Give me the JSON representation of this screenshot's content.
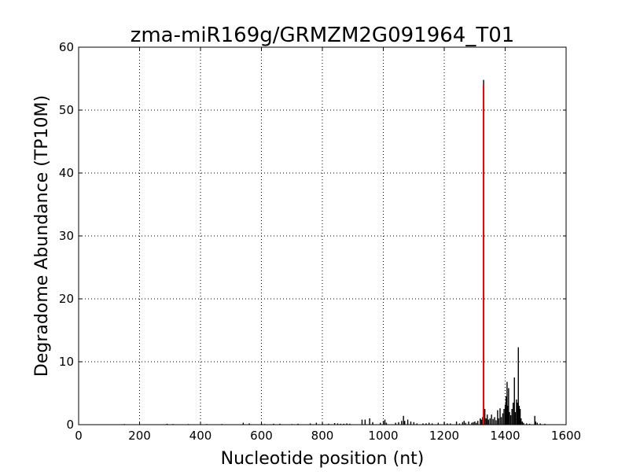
{
  "chart_data": {
    "type": "bar",
    "title": "zma-miR169g/GRMZM2G091964_T01",
    "xlabel": "Nucleotide position (nt)",
    "ylabel": "Degradome Abundance (TP10M)",
    "xlim": [
      0,
      1600
    ],
    "ylim": [
      0,
      60
    ],
    "xticks": [
      "0",
      "200",
      "400",
      "600",
      "800",
      "1000",
      "1200",
      "1400",
      "1600"
    ],
    "yticks": [
      "0",
      "10",
      "20",
      "30",
      "40",
      "50",
      "60"
    ],
    "grid": true,
    "bar_color": "#000000",
    "points": [
      [
        150,
        0.1
      ],
      [
        290,
        0.15
      ],
      [
        310,
        0.1
      ],
      [
        360,
        0.1
      ],
      [
        420,
        0.1
      ],
      [
        470,
        0.1
      ],
      [
        540,
        0.3
      ],
      [
        560,
        0.2
      ],
      [
        600,
        0.15
      ],
      [
        610,
        0.1
      ],
      [
        640,
        0.15
      ],
      [
        660,
        0.15
      ],
      [
        700,
        0.1
      ],
      [
        720,
        0.15
      ],
      [
        760,
        0.2
      ],
      [
        780,
        0.3
      ],
      [
        800,
        0.2
      ],
      [
        820,
        0.15
      ],
      [
        840,
        0.25
      ],
      [
        850,
        0.2
      ],
      [
        860,
        0.15
      ],
      [
        870,
        0.15
      ],
      [
        880,
        0.2
      ],
      [
        890,
        0.15
      ],
      [
        930,
        0.8
      ],
      [
        940,
        0.8
      ],
      [
        955,
        1.0
      ],
      [
        965,
        0.4
      ],
      [
        990,
        0.3
      ],
      [
        1000,
        0.6
      ],
      [
        1005,
        0.8
      ],
      [
        1010,
        0.3
      ],
      [
        1040,
        0.3
      ],
      [
        1050,
        0.4
      ],
      [
        1060,
        0.6
      ],
      [
        1066,
        1.4
      ],
      [
        1070,
        0.6
      ],
      [
        1080,
        0.8
      ],
      [
        1090,
        0.5
      ],
      [
        1100,
        0.4
      ],
      [
        1110,
        0.2
      ],
      [
        1130,
        0.2
      ],
      [
        1140,
        0.2
      ],
      [
        1150,
        0.3
      ],
      [
        1160,
        0.2
      ],
      [
        1180,
        0.3
      ],
      [
        1200,
        0.4
      ],
      [
        1210,
        0.2
      ],
      [
        1220,
        0.2
      ],
      [
        1240,
        0.5
      ],
      [
        1250,
        0.2
      ],
      [
        1260,
        0.4
      ],
      [
        1265,
        0.6
      ],
      [
        1270,
        0.3
      ],
      [
        1280,
        0.5
      ],
      [
        1290,
        0.3
      ],
      [
        1295,
        0.4
      ],
      [
        1300,
        0.5
      ],
      [
        1305,
        0.3
      ],
      [
        1310,
        0.6
      ],
      [
        1318,
        1.0
      ],
      [
        1322,
        0.8
      ],
      [
        1326,
        1.2
      ],
      [
        1329,
        54.8
      ],
      [
        1333,
        2.5
      ],
      [
        1337,
        1.0
      ],
      [
        1341,
        1.6
      ],
      [
        1345,
        0.8
      ],
      [
        1350,
        1.0
      ],
      [
        1355,
        1.6
      ],
      [
        1360,
        0.9
      ],
      [
        1365,
        1.2
      ],
      [
        1370,
        0.7
      ],
      [
        1375,
        2.3
      ],
      [
        1378,
        1.0
      ],
      [
        1383,
        2.6
      ],
      [
        1387,
        1.2
      ],
      [
        1392,
        1.8
      ],
      [
        1396,
        2.5
      ],
      [
        1400,
        3.2
      ],
      [
        1403,
        4.5
      ],
      [
        1406,
        6.8
      ],
      [
        1408,
        3.0
      ],
      [
        1411,
        5.8
      ],
      [
        1414,
        2.0
      ],
      [
        1418,
        1.5
      ],
      [
        1422,
        2.5
      ],
      [
        1426,
        3.5
      ],
      [
        1430,
        7.5
      ],
      [
        1433,
        2.0
      ],
      [
        1437,
        4.0
      ],
      [
        1440,
        3.5
      ],
      [
        1443,
        12.3
      ],
      [
        1446,
        3.0
      ],
      [
        1449,
        2.5
      ],
      [
        1452,
        1.0
      ],
      [
        1456,
        0.5
      ],
      [
        1460,
        0.3
      ],
      [
        1470,
        0.2
      ],
      [
        1480,
        0.15
      ],
      [
        1497,
        1.4
      ],
      [
        1500,
        0.5
      ],
      [
        1505,
        0.3
      ],
      [
        1515,
        0.2
      ],
      [
        1530,
        0.15
      ]
    ],
    "highlight": {
      "x": 1329,
      "y": 54,
      "color": "#ff0000"
    }
  }
}
